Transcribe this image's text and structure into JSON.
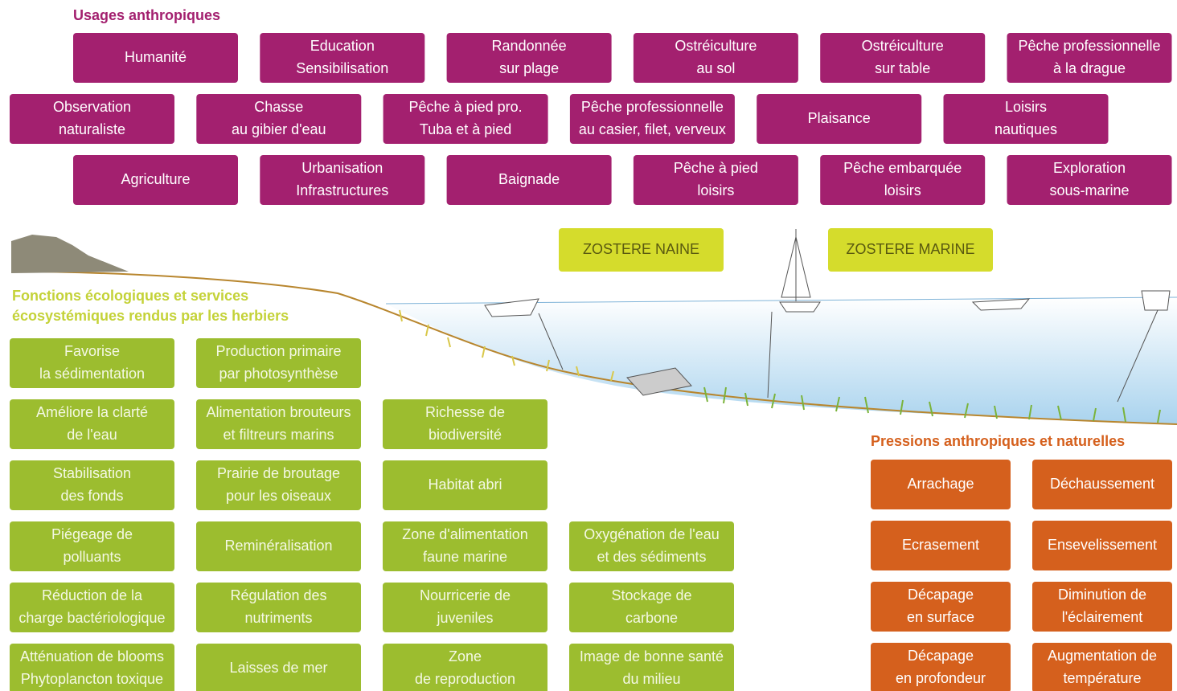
{
  "usages": {
    "title": "Usages anthropiques",
    "items": [
      [
        "Humanité"
      ],
      [
        "Education",
        "Sensibilisation"
      ],
      [
        "Randonnée",
        "sur plage"
      ],
      [
        "Ostréiculture",
        "au sol"
      ],
      [
        "Ostréiculture",
        "sur table"
      ],
      [
        "Pêche professionnelle",
        "à la drague"
      ],
      [
        "Observation",
        "naturaliste"
      ],
      [
        "Chasse",
        "au gibier d'eau"
      ],
      [
        "Pêche à pied pro.",
        "Tuba et à pied"
      ],
      [
        "Pêche professionnelle",
        "au casier, filet, verveux"
      ],
      [
        "Plaisance"
      ],
      [
        "Loisirs",
        "nautiques"
      ],
      [
        "Agriculture"
      ],
      [
        "Urbanisation",
        "Infrastructures"
      ],
      [
        "Baignade"
      ],
      [
        "Pêche à pied",
        "loisirs"
      ],
      [
        "Pêche embarquée",
        "loisirs"
      ],
      [
        "Exploration",
        "sous-marine"
      ]
    ]
  },
  "zosteres": [
    "ZOSTERE NAINE",
    "ZOSTERE MARINE"
  ],
  "fonctions": {
    "title": [
      "Fonctions écologiques et services",
      "écosystémiques rendus par les herbiers"
    ],
    "items": [
      [
        "Favorise",
        "la sédimentation"
      ],
      [
        "Production primaire",
        "par photosynthèse"
      ],
      [
        "Améliore la clarté",
        "de l'eau"
      ],
      [
        "Alimentation brouteurs",
        "et filtreurs marins"
      ],
      [
        "Richesse de",
        "biodiversité"
      ],
      [
        "Stabilisation",
        "des fonds"
      ],
      [
        "Prairie de broutage",
        "pour les oiseaux"
      ],
      [
        "Habitat abri"
      ],
      [
        "Piégeage de",
        "polluants"
      ],
      [
        "Reminéralisation"
      ],
      [
        "Zone d'alimentation",
        "faune marine"
      ],
      [
        "Oxygénation de l'eau",
        "et des sédiments"
      ],
      [
        "Réduction de la",
        "charge bactériologique"
      ],
      [
        "Régulation des",
        "nutriments"
      ],
      [
        "Nourricerie de",
        "juveniles"
      ],
      [
        "Stockage de",
        "carbone"
      ],
      [
        "Atténuation de blooms",
        "Phytoplancton toxique"
      ],
      [
        "Laisses de mer"
      ],
      [
        "Zone",
        "de reproduction"
      ],
      [
        "Image de bonne santé",
        "du milieu"
      ]
    ]
  },
  "pressions": {
    "title": "Pressions anthropiques et naturelles",
    "items": [
      [
        "Arrachage"
      ],
      [
        "Déchaussement"
      ],
      [
        "Ecrasement"
      ],
      [
        "Ensevelissement"
      ],
      [
        "Décapage",
        "en surface"
      ],
      [
        "Diminution de",
        "l'éclairement"
      ],
      [
        "Décapage",
        "en profondeur"
      ],
      [
        "Augmentation de",
        "température"
      ]
    ]
  }
}
